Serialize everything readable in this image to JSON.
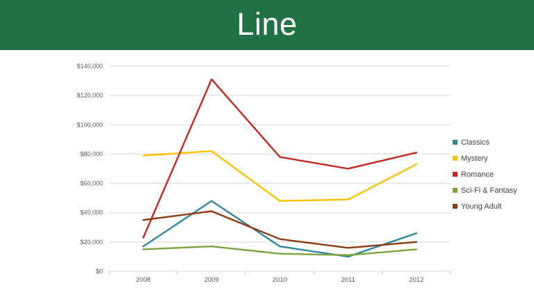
{
  "header": {
    "title": "Line",
    "bg_color": "#217346",
    "text_color": "#FFFFFF"
  },
  "chart_data": {
    "type": "line",
    "categories": [
      "2008",
      "2009",
      "2010",
      "2011",
      "2012"
    ],
    "series": [
      {
        "name": "Classics",
        "color": "#31859C",
        "values": [
          17000,
          48000,
          17000,
          10000,
          26000
        ]
      },
      {
        "name": "Mystery",
        "color": "#FFC000",
        "values": [
          79000,
          82000,
          48000,
          49000,
          73000
        ]
      },
      {
        "name": "Romance",
        "color": "#C3261C",
        "values": [
          23000,
          131000,
          78000,
          70000,
          81000
        ]
      },
      {
        "name": "Sci-Fi & Fantasy",
        "color": "#79A33C",
        "values": [
          15000,
          17000,
          12000,
          11000,
          15000
        ]
      },
      {
        "name": "Young Adult",
        "color": "#8E3B12",
        "values": [
          35000,
          41000,
          22000,
          16000,
          20000
        ]
      }
    ],
    "title": "",
    "xlabel": "",
    "ylabel": "",
    "ylim": [
      0,
      140000
    ],
    "ytick_step": 20000,
    "ytick_labels": [
      "$0",
      "$20,000",
      "$40,000",
      "$60,000",
      "$80,000",
      "$100,000",
      "$120,000",
      "$140,000"
    ],
    "grid": "horizontal",
    "legend_position": "right",
    "colors": {
      "gridline": "#D9D9D9",
      "axis_tick": "#BFBFBF",
      "axis_text": "#595959",
      "legend_text": "#404040"
    }
  }
}
